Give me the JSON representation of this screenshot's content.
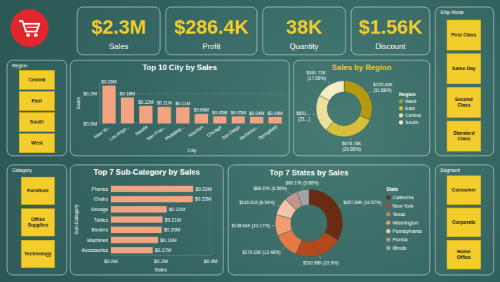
{
  "kpis": [
    {
      "value": "$2.3M",
      "label": "Sales"
    },
    {
      "value": "$286.4K",
      "label": "Profit"
    },
    {
      "value": "38K",
      "label": "Quantity"
    },
    {
      "value": "$1.56K",
      "label": "Discount"
    }
  ],
  "slicers": [
    {
      "title": "Region",
      "items": [
        "Central",
        "East",
        "South",
        "West"
      ]
    },
    {
      "title": "Category",
      "items": [
        "Furniture",
        "Office Supplies",
        "Technology"
      ]
    },
    {
      "title": "Ship Mode",
      "items": [
        "First Class",
        "Same Day",
        "Second Class",
        "Standard Class"
      ]
    },
    {
      "title": "Segment",
      "items": [
        "Consumer",
        "Corporate",
        "Home Office"
      ]
    }
  ],
  "chart_data": [
    {
      "type": "bar",
      "title": "Top 10 City by Sales",
      "xlabel": "City",
      "ylabel": "Sales",
      "categories": [
        "New Yo...",
        "Los Ange...",
        "Seattle",
        "San Fran...",
        "Philadelp...",
        "Houston",
        "Chicago",
        "San Diego",
        "Jacksonv...",
        "Springfield"
      ],
      "values": [
        0.2564,
        0.1759,
        0.1195,
        0.1127,
        0.1091,
        0.0645,
        0.0485,
        0.0475,
        0.0447,
        0.0431
      ],
      "value_labels": [
        "$0.26M",
        "$0.18M",
        "$0.12M",
        "$0.11M",
        "$0.11M",
        "$0.06M",
        "$0.05M",
        "$0.05M",
        "$0.04M",
        "$0.04M"
      ],
      "color": "#f2a381",
      "ylim": [
        0,
        0.28
      ],
      "yticks": [
        {
          "value": 0,
          "label": "$0.0M"
        },
        {
          "value": 0.2,
          "label": "$0.2M"
        }
      ],
      "grid": true,
      "data_labels": true
    },
    {
      "type": "donut",
      "title": "Sales by Region",
      "legend_title": "Region",
      "categories": [
        "West",
        "East",
        "Central",
        "South"
      ],
      "values": [
        725.46,
        678.78,
        501.24,
        391.72
      ],
      "value_labels": [
        "$725.46K (31.58%)",
        "$678.78K (29.55%)",
        "$501... (21...)",
        "$391.72K (17.05%)"
      ],
      "colors": [
        "#b39a12",
        "#d7be3c",
        "#ece09a",
        "#f4edc6"
      ],
      "legend": "right",
      "data_labels": true
    },
    {
      "type": "bar",
      "orientation": "horizontal",
      "title": "Top 7 Sub-Category by Sales",
      "xlabel": "Sales",
      "ylabel": "Sub-Category",
      "categories": [
        "Phones",
        "Chairs",
        "Storage",
        "Tables",
        "Binders",
        "Machines",
        "Accessories"
      ],
      "values": [
        0.33,
        0.3284,
        0.2238,
        0.207,
        0.2034,
        0.1892,
        0.1674
      ],
      "value_labels": [
        "$0.33M",
        "$0.33M",
        "$0.22M",
        "$0.21M",
        "$0.20M",
        "$0.19M",
        "$0.17M"
      ],
      "color": "#f2a381",
      "xlim": [
        0,
        0.4
      ],
      "xticks": [
        {
          "value": 0,
          "label": "$0.0M"
        },
        {
          "value": 0.2,
          "label": "$0.2M"
        },
        {
          "value": 0.4,
          "label": "$0.4M"
        }
      ],
      "grid": true,
      "data_labels": true
    },
    {
      "type": "donut",
      "title": "Top 7 States by Sales",
      "legend_title": "State",
      "categories": [
        "California",
        "New York",
        "Texas",
        "Washington",
        "Pennsylvania",
        "Florida",
        "Illinois"
      ],
      "values": [
        457.69,
        310.88,
        170.19,
        138.64,
        116.51,
        89.47,
        80.17
      ],
      "value_labels": [
        "$457.69K (33.57%)",
        "$310.88K (22.8%)",
        "$170.19K (12.48%)",
        "$138.64K (10.17%)",
        "$116.51K (8.54%)",
        "$89.47K (6.56%)",
        "$80.17K (5.88%)"
      ],
      "colors": [
        "#6b2a12",
        "#b3491c",
        "#e27a45",
        "#f19c72",
        "#f6c4ab",
        "#c7938f",
        "#a3a3a3"
      ],
      "legend": "right",
      "data_labels": true
    }
  ]
}
